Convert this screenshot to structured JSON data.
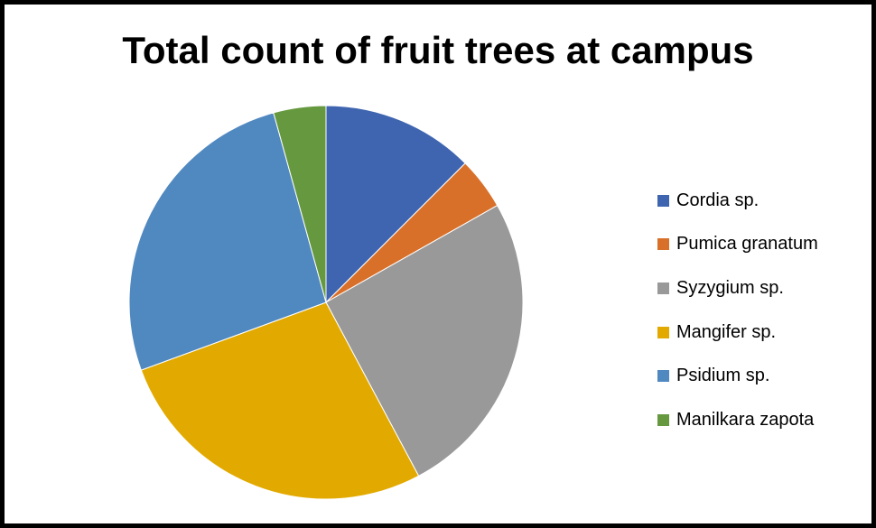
{
  "chart_data": {
    "type": "pie",
    "title": "Total count of fruit trees at campus",
    "legend_position": "right",
    "categories": [
      "Cordia sp.",
      "Pumica granatum",
      "Syzygium sp.",
      "Mangifer sp.",
      "Psidium sp.",
      "Manilkara zapota"
    ],
    "values": [
      12.5,
      4.3,
      25.4,
      27.2,
      26.3,
      4.3
    ],
    "colors": [
      "#3f65b0",
      "#d9702a",
      "#999999",
      "#e2aa00",
      "#5088c0",
      "#66993f"
    ]
  }
}
